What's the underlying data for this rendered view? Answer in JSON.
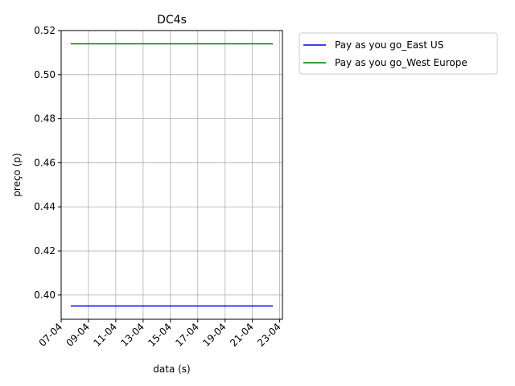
{
  "chart_data": {
    "type": "line",
    "title": "DC4s",
    "xlabel": "data (s)",
    "ylabel": "preço (p)",
    "x_tick_labels": [
      "07-04",
      "09-04",
      "11-04",
      "13-04",
      "15-04",
      "17-04",
      "19-04",
      "21-04",
      "23-04"
    ],
    "x_ticks_days": [
      7,
      9,
      11,
      13,
      15,
      17,
      19,
      21,
      23
    ],
    "xlim_days": [
      7,
      23.2
    ],
    "y_tick_labels": [
      "0.40",
      "0.42",
      "0.44",
      "0.46",
      "0.48",
      "0.50",
      "0.52"
    ],
    "ylim": [
      0.389,
      0.52
    ],
    "grid": true,
    "legend_position": "outside-top-right",
    "series": [
      {
        "name": "Pay as you go_East US",
        "color": "#0000ff",
        "x_days": [
          7.7,
          22.5
        ],
        "values": [
          0.395,
          0.395
        ]
      },
      {
        "name": "Pay as you go_West Europe",
        "color": "#008000",
        "x_days": [
          7.7,
          22.5
        ],
        "values": [
          0.514,
          0.514
        ]
      }
    ]
  }
}
